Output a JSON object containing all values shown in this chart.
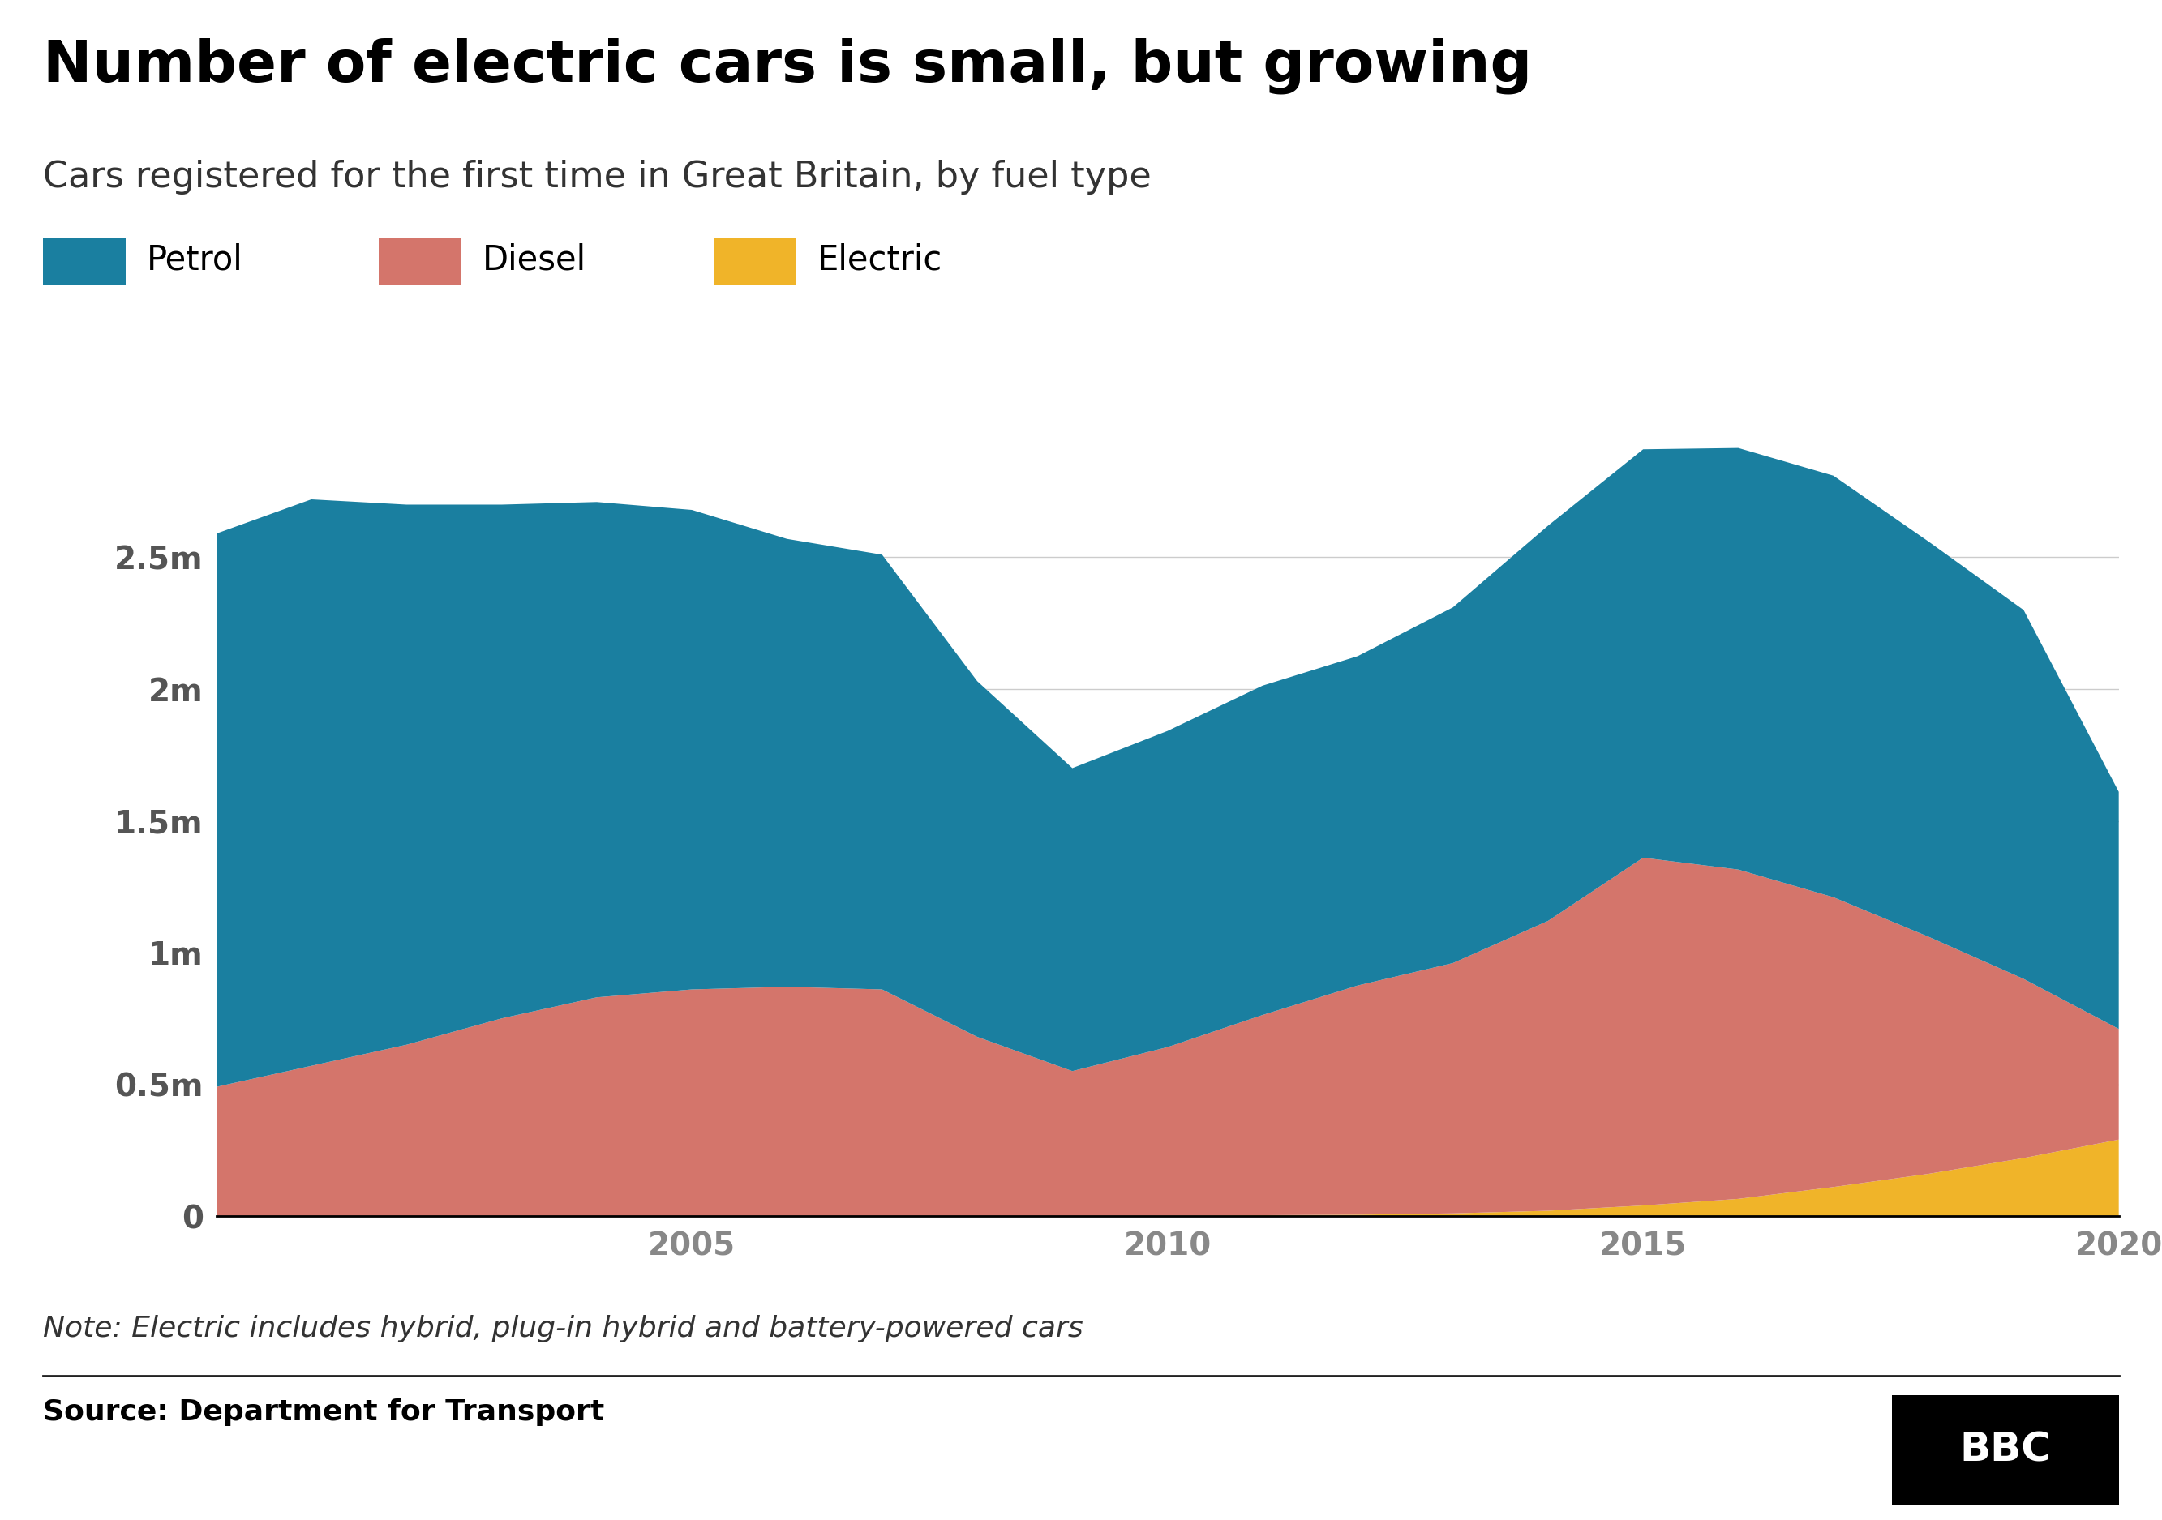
{
  "title": "Number of electric cars is small, but growing",
  "subtitle": "Cars registered for the first time in Great Britain, by fuel type",
  "note": "Note: Electric includes hybrid, plug-in hybrid and battery-powered cars",
  "source": "Source: Department for Transport",
  "years": [
    2000,
    2001,
    2002,
    2003,
    2004,
    2005,
    2006,
    2007,
    2008,
    2009,
    2010,
    2011,
    2012,
    2013,
    2014,
    2015,
    2016,
    2017,
    2018,
    2019,
    2020
  ],
  "petrol": [
    2100000,
    2150000,
    2050000,
    1950000,
    1880000,
    1820000,
    1700000,
    1650000,
    1350000,
    1150000,
    1200000,
    1250000,
    1250000,
    1350000,
    1500000,
    1550000,
    1600000,
    1600000,
    1500000,
    1400000,
    900000
  ],
  "diesel": [
    490000,
    570000,
    650000,
    750000,
    830000,
    860000,
    870000,
    860000,
    680000,
    550000,
    640000,
    760000,
    870000,
    950000,
    1100000,
    1320000,
    1250000,
    1100000,
    900000,
    680000,
    420000
  ],
  "electric": [
    0,
    0,
    0,
    0,
    0,
    0,
    0,
    0,
    0,
    0,
    1000,
    3000,
    5000,
    10000,
    20000,
    40000,
    65000,
    110000,
    160000,
    220000,
    290000
  ],
  "colors": {
    "petrol": "#1a7fa0",
    "diesel": "#d4756b",
    "electric": "#f0b429"
  },
  "background_color": "#ffffff",
  "ylim": [
    0,
    3000000
  ],
  "yticks": [
    0,
    500000,
    1000000,
    1500000,
    2000000,
    2500000
  ],
  "ytick_labels": [
    "0",
    "0.5m",
    "1m",
    "1.5m",
    "2m",
    "2.5m"
  ],
  "title_fontsize": 52,
  "subtitle_fontsize": 32,
  "legend_fontsize": 30,
  "tick_fontsize": 28,
  "note_fontsize": 26,
  "source_fontsize": 26
}
